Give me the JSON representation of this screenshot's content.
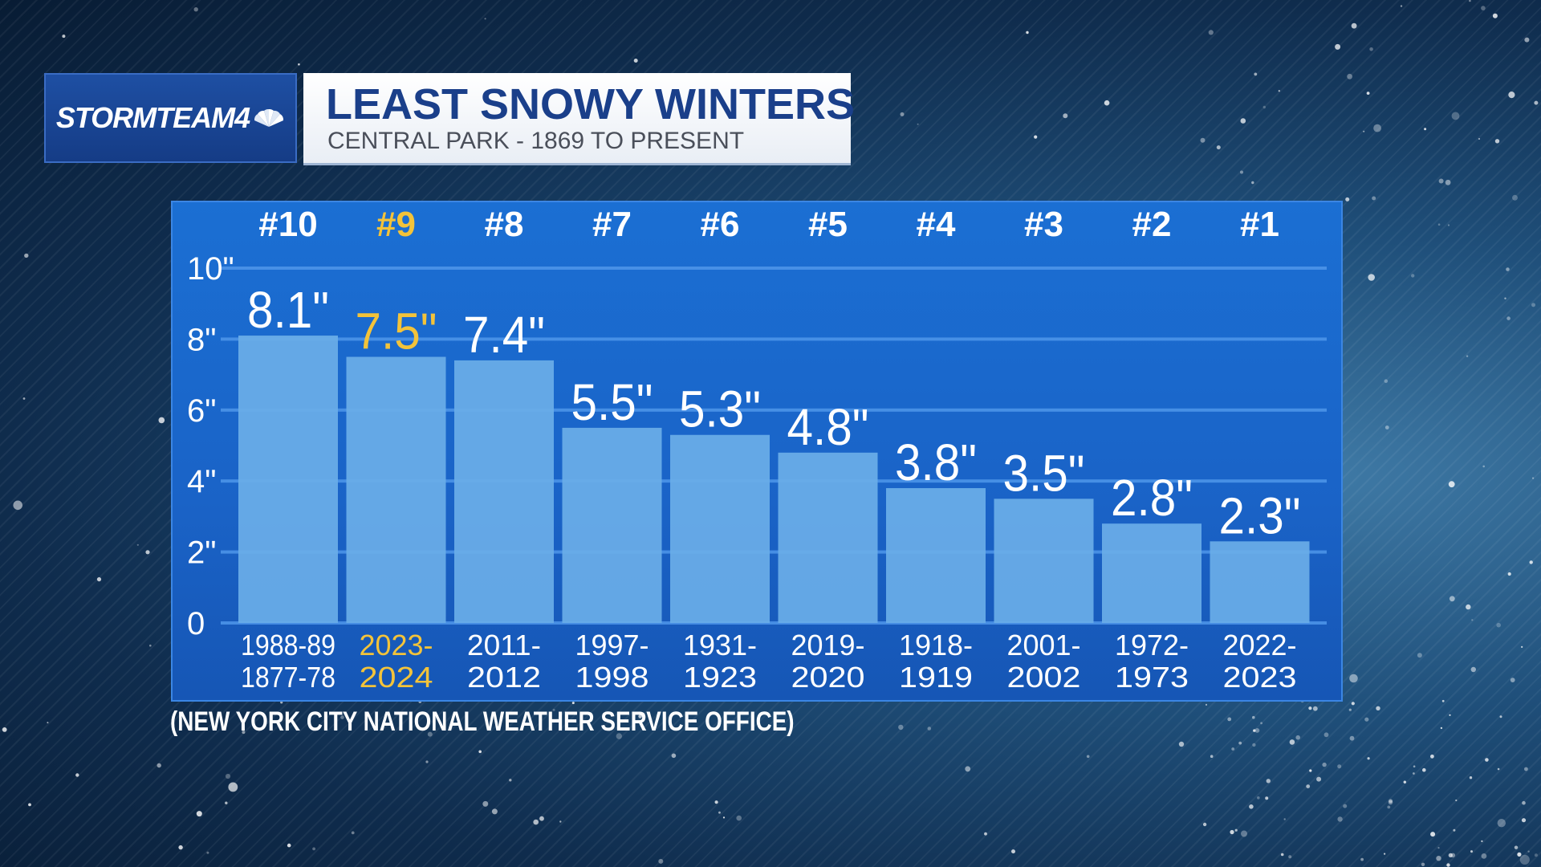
{
  "header": {
    "logo_text": "STORMTEAM4",
    "title": "LEAST SNOWY WINTERS",
    "subtitle": "CENTRAL PARK - 1869 TO PRESENT"
  },
  "source_note": "(NEW YORK CITY NATIONAL WEATHER SERVICE OFFICE)",
  "colors": {
    "highlight": "#f3c33a",
    "bar": "#6aaee8",
    "panel": "#1b6fd3",
    "title": "#1a3f8a"
  },
  "chart_data": {
    "type": "bar",
    "title": "LEAST SNOWY WINTERS",
    "subtitle": "CENTRAL PARK - 1869 TO PRESENT",
    "ylim": [
      0,
      10
    ],
    "yticks": [
      "0",
      "2\"",
      "4\"",
      "6\"",
      "8\"",
      "10\""
    ],
    "ytick_values": [
      0,
      2,
      4,
      6,
      8,
      10
    ],
    "grid": true,
    "highlight_index": 1,
    "ranks": [
      "#10",
      "#9",
      "#8",
      "#7",
      "#6",
      "#5",
      "#4",
      "#3",
      "#2",
      "#1"
    ],
    "categories": [
      [
        "1988-89",
        "1877-78"
      ],
      [
        "2023-",
        "2024"
      ],
      [
        "2011-",
        "2012"
      ],
      [
        "1997-",
        "1998"
      ],
      [
        "1931-",
        "1923"
      ],
      [
        "2019-",
        "2020"
      ],
      [
        "1918-",
        "1919"
      ],
      [
        "2001-",
        "2002"
      ],
      [
        "1972-",
        "1973"
      ],
      [
        "2022-",
        "2023"
      ]
    ],
    "values": [
      8.1,
      7.5,
      7.4,
      5.5,
      5.3,
      4.8,
      3.8,
      3.5,
      2.8,
      2.3
    ],
    "value_labels": [
      "8.1\"",
      "7.5\"",
      "7.4\"",
      "5.5\"",
      "5.3\"",
      "4.8\"",
      "3.8\"",
      "3.5\"",
      "2.8\"",
      "2.3\""
    ]
  }
}
